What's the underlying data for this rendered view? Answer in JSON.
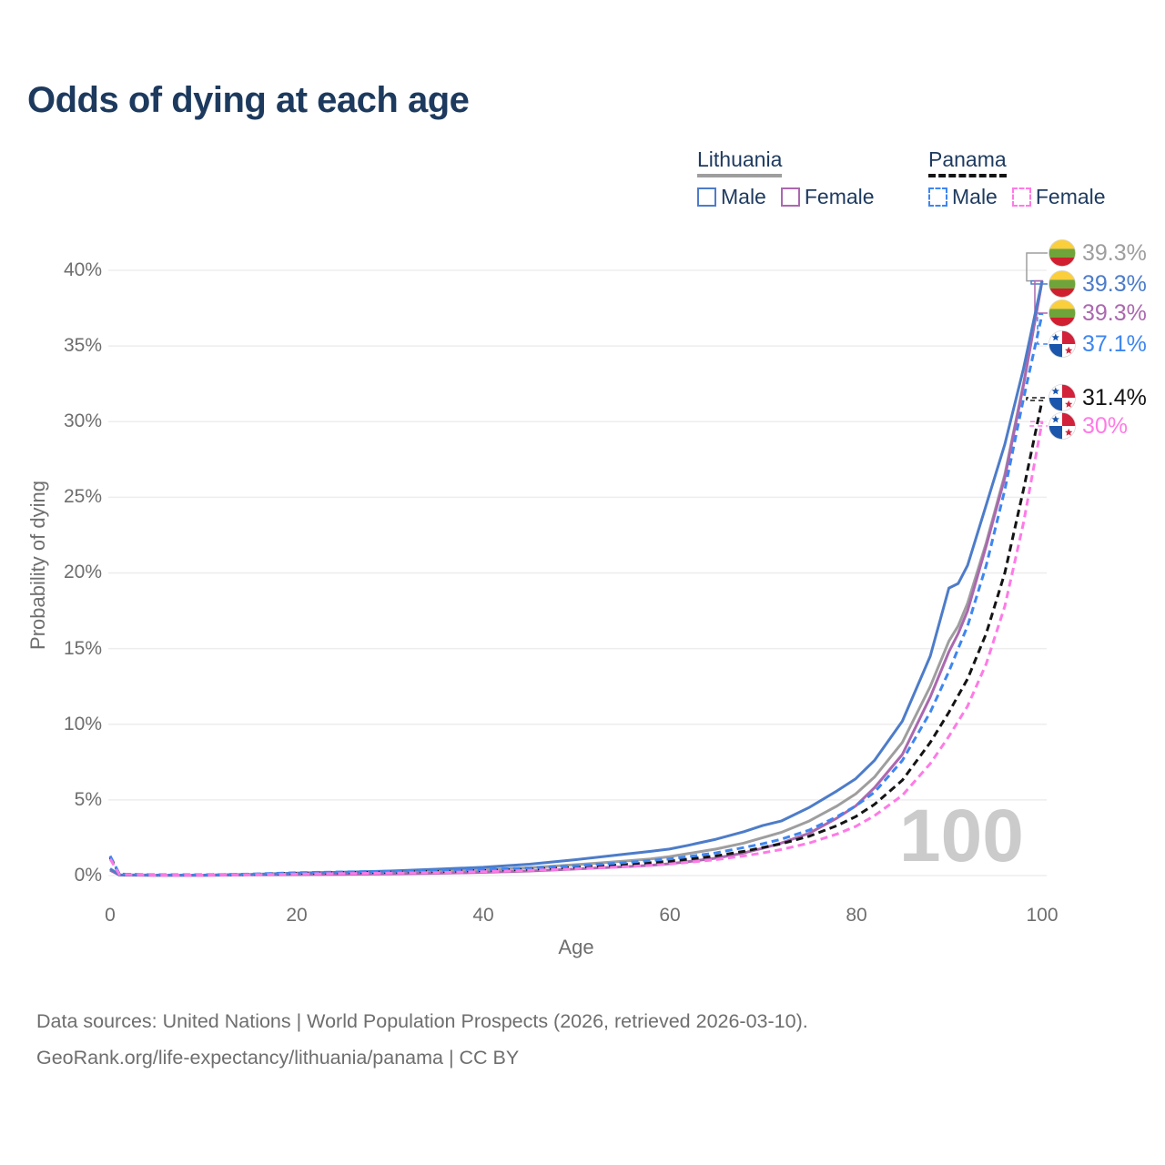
{
  "title": "Odds of dying at each age",
  "legend": {
    "groups": [
      {
        "name": "Lithuania",
        "line_style": "solid",
        "items": [
          {
            "label": "Male",
            "color": "#4d7cc9"
          },
          {
            "label": "Female",
            "color": "#ab68af"
          }
        ]
      },
      {
        "name": "Panama",
        "line_style": "dashed",
        "items": [
          {
            "label": "Male",
            "color": "#3e86f0"
          },
          {
            "label": "Female",
            "color": "#ff7ae6"
          }
        ]
      }
    ]
  },
  "axes": {
    "y_label": "Probability of dying",
    "x_label": "Age",
    "y_ticks": [
      "40%",
      "35%",
      "30%",
      "25%",
      "20%",
      "15%",
      "10%",
      "5%",
      "0%"
    ],
    "x_ticks": [
      "0",
      "20",
      "40",
      "60",
      "80",
      "100"
    ],
    "grid": "horizontal"
  },
  "watermark": "100",
  "end_labels": [
    {
      "value": "39.3%",
      "flag": "lithuania",
      "color": "#9e9e9e",
      "series": "Lithuania"
    },
    {
      "value": "39.3%",
      "flag": "lithuania",
      "color": "#4d7cc9",
      "series": "Lithuania Male"
    },
    {
      "value": "39.3%",
      "flag": "lithuania",
      "color": "#ab68af",
      "series": "Lithuania Female"
    },
    {
      "value": "37.1%",
      "flag": "panama",
      "color": "#3e86f0",
      "series": "Panama Male"
    },
    {
      "value": "31.4%",
      "flag": "panama",
      "color": "#141414",
      "series": "Panama"
    },
    {
      "value": "30%",
      "flag": "panama",
      "color": "#ff7ae6",
      "series": "Panama Female"
    }
  ],
  "footer": {
    "line1": "Data sources: United Nations | World Population Prospects (2026, retrieved 2026-03-10).",
    "line2": "GeoRank.org/life-expectancy/lithuania/panama | CC BY"
  },
  "colors": {
    "title": "#1d3a5e",
    "grid": "#ededed",
    "tick_text": "#6e6e6e",
    "watermark": "#cbcbcb",
    "flags": {
      "lt_yellow": "#FBCE3C",
      "lt_green": "#6FA43A",
      "lt_red": "#D01F2E",
      "pa_blue": "#1A56AC",
      "pa_red": "#D2213B",
      "pa_white": "#FFFFFF",
      "ring": "#d9d9d9"
    }
  },
  "chart_data": {
    "type": "line",
    "title": "Odds of dying at each age",
    "xlabel": "Age",
    "ylabel": "Probability of dying",
    "xlim": [
      0,
      100
    ],
    "ylim": [
      0,
      40
    ],
    "y_unit": "%",
    "legend_position": "top-right",
    "grid": "horizontal only, ticks every 5%",
    "x": [
      0,
      1,
      5,
      10,
      15,
      20,
      25,
      30,
      35,
      40,
      45,
      50,
      55,
      58,
      60,
      62,
      65,
      68,
      70,
      72,
      75,
      78,
      80,
      82,
      85,
      88,
      90,
      91,
      92,
      94,
      96,
      98,
      100
    ],
    "series": [
      {
        "name": "Lithuania (both sexes)",
        "color": "#9e9e9e",
        "dash": false,
        "values": [
          0.4,
          0.04,
          0.02,
          0.02,
          0.06,
          0.11,
          0.15,
          0.2,
          0.28,
          0.38,
          0.52,
          0.72,
          0.95,
          1.1,
          1.25,
          1.45,
          1.75,
          2.15,
          2.5,
          2.85,
          3.6,
          4.6,
          5.4,
          6.5,
          8.8,
          12.5,
          15.5,
          16.5,
          18.0,
          22.0,
          26.5,
          32.5,
          39.3
        ],
        "end_label": "39.3%"
      },
      {
        "name": "Lithuania Male",
        "color": "#4d7cc9",
        "dash": false,
        "values": [
          0.45,
          0.05,
          0.03,
          0.03,
          0.08,
          0.16,
          0.22,
          0.3,
          0.42,
          0.55,
          0.75,
          1.05,
          1.4,
          1.6,
          1.75,
          2.0,
          2.4,
          2.9,
          3.3,
          3.6,
          4.5,
          5.6,
          6.4,
          7.6,
          10.2,
          14.5,
          19.0,
          19.3,
          20.5,
          24.5,
          28.5,
          33.5,
          39.3
        ],
        "end_label": "39.3%"
      },
      {
        "name": "Lithuania Female",
        "color": "#ab68af",
        "dash": false,
        "values": [
          0.35,
          0.03,
          0.02,
          0.02,
          0.04,
          0.06,
          0.08,
          0.11,
          0.15,
          0.21,
          0.3,
          0.44,
          0.58,
          0.68,
          0.78,
          0.92,
          1.15,
          1.5,
          1.8,
          2.15,
          2.8,
          3.8,
          4.6,
          5.8,
          8.0,
          11.8,
          14.8,
          16.0,
          17.5,
          21.8,
          26.3,
          32.4,
          39.3
        ],
        "end_label": "39.3%"
      },
      {
        "name": "Panama Male",
        "color": "#3e86f0",
        "dash": true,
        "values": [
          1.3,
          0.1,
          0.04,
          0.04,
          0.1,
          0.19,
          0.24,
          0.28,
          0.33,
          0.4,
          0.5,
          0.65,
          0.85,
          1.0,
          1.1,
          1.25,
          1.5,
          1.85,
          2.1,
          2.4,
          3.0,
          3.9,
          4.6,
          5.5,
          7.6,
          10.8,
          13.5,
          15.0,
          16.5,
          20.5,
          25.5,
          31.5,
          37.1
        ],
        "end_label": "37.1%"
      },
      {
        "name": "Panama (both sexes)",
        "color": "#141414",
        "dash": true,
        "values": [
          1.2,
          0.09,
          0.04,
          0.04,
          0.08,
          0.15,
          0.19,
          0.22,
          0.27,
          0.33,
          0.42,
          0.55,
          0.72,
          0.85,
          0.95,
          1.08,
          1.3,
          1.6,
          1.85,
          2.1,
          2.6,
          3.3,
          3.9,
          4.7,
          6.3,
          8.8,
          10.8,
          11.9,
          13.0,
          16.0,
          20.0,
          25.5,
          31.4
        ],
        "end_label": "31.4%"
      },
      {
        "name": "Panama Female",
        "color": "#ff7ae6",
        "dash": true,
        "values": [
          1.1,
          0.08,
          0.03,
          0.03,
          0.06,
          0.1,
          0.13,
          0.16,
          0.2,
          0.26,
          0.34,
          0.45,
          0.58,
          0.68,
          0.76,
          0.87,
          1.05,
          1.3,
          1.5,
          1.72,
          2.15,
          2.75,
          3.25,
          3.95,
          5.3,
          7.4,
          9.2,
          10.2,
          11.2,
          14.0,
          17.8,
          23.3,
          30.0
        ],
        "end_label": "30%"
      }
    ]
  }
}
